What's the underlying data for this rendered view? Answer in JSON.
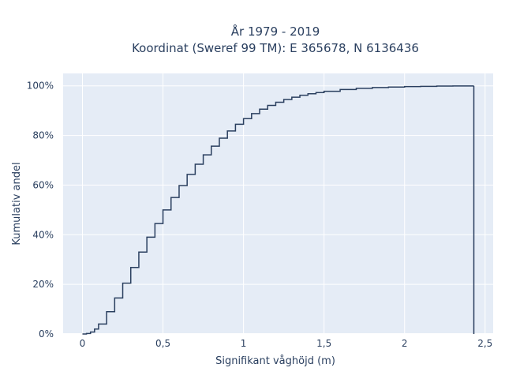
{
  "chart_data": {
    "type": "line",
    "title": "År 1979 - 2019",
    "subtitle": "Koordinat (Sweref 99 TM): E 365678, N 6136436",
    "xlabel": "Signifikant våghöjd (m)",
    "ylabel": "Kumulativ andel",
    "xlim": [
      -0.12,
      2.55
    ],
    "ylim": [
      0,
      1.05
    ],
    "x_ticks": [
      0,
      0.5,
      1,
      1.5,
      2,
      2.5
    ],
    "x_tick_labels": [
      "0",
      "0,5",
      "1",
      "1,5",
      "2",
      "2,5"
    ],
    "y_ticks": [
      0,
      0.2,
      0.4,
      0.6,
      0.8,
      1.0
    ],
    "y_tick_labels": [
      "0%",
      "20%",
      "40%",
      "60%",
      "80%",
      "100%"
    ],
    "grid": true,
    "line_shape": "step",
    "series": [
      {
        "x": [
          0,
          0.025,
          0.05,
          0.075,
          0.1,
          0.15,
          0.2,
          0.25,
          0.3,
          0.35,
          0.4,
          0.45,
          0.5,
          0.55,
          0.6,
          0.65,
          0.7,
          0.75,
          0.8,
          0.85,
          0.9,
          0.95,
          1.0,
          1.05,
          1.1,
          1.15,
          1.2,
          1.25,
          1.3,
          1.35,
          1.4,
          1.45,
          1.5,
          1.6,
          1.7,
          1.8,
          1.9,
          2.0,
          2.1,
          2.2,
          2.3,
          2.43,
          2.43
        ],
        "y": [
          0,
          0.002,
          0.008,
          0.02,
          0.04,
          0.09,
          0.145,
          0.205,
          0.268,
          0.33,
          0.39,
          0.445,
          0.5,
          0.55,
          0.598,
          0.643,
          0.684,
          0.722,
          0.757,
          0.789,
          0.818,
          0.845,
          0.868,
          0.888,
          0.906,
          0.921,
          0.934,
          0.945,
          0.954,
          0.962,
          0.968,
          0.973,
          0.978,
          0.985,
          0.99,
          0.993,
          0.995,
          0.997,
          0.998,
          0.999,
          0.9995,
          1.0,
          0
        ],
        "color": "#2a3f5f"
      }
    ]
  }
}
